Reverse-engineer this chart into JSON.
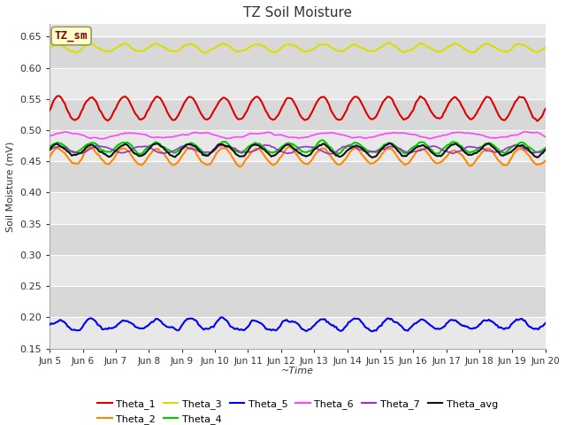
{
  "title": "TZ Soil Moisture",
  "xlabel": "~Time",
  "ylabel": "Soil Moisture (mV)",
  "ylim": [
    0.15,
    0.67
  ],
  "xlim": [
    0,
    360
  ],
  "xtick_positions": [
    0,
    24,
    48,
    72,
    96,
    120,
    144,
    168,
    192,
    216,
    240,
    264,
    288,
    312,
    336,
    360
  ],
  "xtick_labels": [
    "Jun 5",
    "Jun 6",
    "Jun 7",
    "Jun 8",
    "Jun 9",
    "Jun 10",
    "Jun 11",
    "Jun 12",
    "Jun 13",
    "Jun 14",
    "Jun 15",
    "Jun 16",
    "Jun 17",
    "Jun 18",
    "Jun 19",
    "Jun 20"
  ],
  "ytick_positions": [
    0.15,
    0.2,
    0.25,
    0.3,
    0.35,
    0.4,
    0.45,
    0.5,
    0.55,
    0.6,
    0.65
  ],
  "annotation_text": "TZ_sm",
  "annotation_color": "#880000",
  "annotation_bg": "#ffffcc",
  "annotation_border": "#999955",
  "bg_light": "#e8e8e8",
  "bg_dark": "#d8d8d8",
  "series_order": [
    "Theta_1",
    "Theta_2",
    "Theta_3",
    "Theta_4",
    "Theta_5",
    "Theta_6",
    "Theta_7",
    "Theta_avg"
  ],
  "legend_order": [
    "Theta_1",
    "Theta_2",
    "Theta_3",
    "Theta_4",
    "Theta_5",
    "Theta_6",
    "Theta_7",
    "Theta_avg"
  ],
  "series": {
    "Theta_1": {
      "color": "#dd0000",
      "base": 0.535,
      "amp": 0.018,
      "freq_per_day": 1.0,
      "noise": 0.003,
      "lw": 1.5
    },
    "Theta_2": {
      "color": "#ff8800",
      "base": 0.458,
      "amp": 0.013,
      "freq_per_day": 1.0,
      "noise": 0.003,
      "lw": 1.5
    },
    "Theta_3": {
      "color": "#dddd00",
      "base": 0.632,
      "amp": 0.006,
      "freq_per_day": 1.0,
      "noise": 0.002,
      "lw": 1.5
    },
    "Theta_4": {
      "color": "#00cc00",
      "base": 0.472,
      "amp": 0.008,
      "freq_per_day": 1.0,
      "noise": 0.003,
      "lw": 1.5
    },
    "Theta_5": {
      "color": "#0000ee",
      "base": 0.188,
      "amp": 0.008,
      "freq_per_day": 1.0,
      "noise": 0.004,
      "lw": 1.5
    },
    "Theta_6": {
      "color": "#ff44ff",
      "base": 0.492,
      "amp": 0.004,
      "freq_per_day": 0.5,
      "noise": 0.002,
      "lw": 1.2
    },
    "Theta_7": {
      "color": "#9933cc",
      "base": 0.469,
      "amp": 0.005,
      "freq_per_day": 0.8,
      "noise": 0.002,
      "lw": 1.2
    },
    "Theta_avg": {
      "color": "#111111",
      "base": 0.468,
      "amp": 0.009,
      "freq_per_day": 1.0,
      "noise": 0.003,
      "lw": 1.5
    }
  }
}
